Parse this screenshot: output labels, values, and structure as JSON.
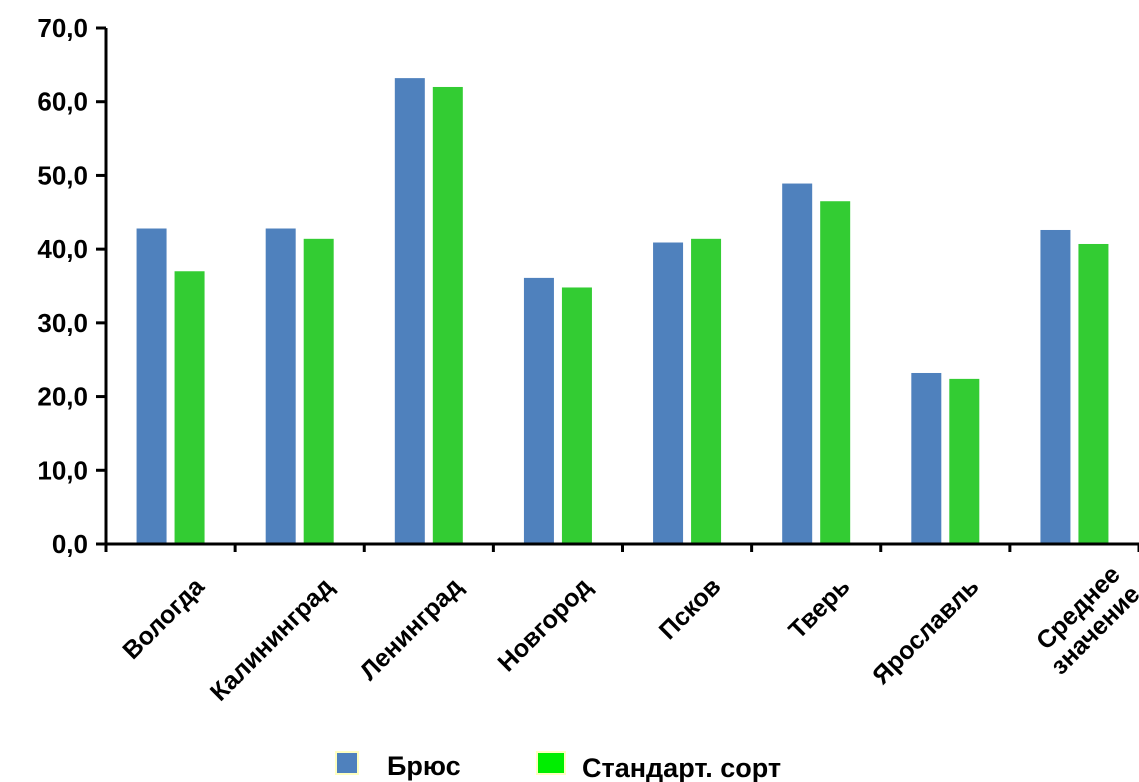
{
  "chart_data": {
    "type": "bar",
    "categories": [
      [
        "Вологда"
      ],
      [
        "Калининград"
      ],
      [
        "Ленинград"
      ],
      [
        "Новгород"
      ],
      [
        "Псков"
      ],
      [
        "Тверь"
      ],
      [
        "Ярославль"
      ],
      [
        "Среднее",
        "значение"
      ]
    ],
    "series": [
      {
        "name": "Брюс",
        "color": "#4f81bd",
        "values": [
          42.8,
          42.8,
          63.2,
          36.1,
          40.9,
          48.9,
          23.2,
          42.6
        ]
      },
      {
        "name": "Стандарт. сорт",
        "color": "#33cc33",
        "values": [
          37.0,
          41.4,
          62.0,
          34.8,
          41.4,
          46.5,
          22.4,
          40.7
        ]
      }
    ],
    "yticks": [
      "0,0",
      "10,0",
      "20,0",
      "30,0",
      "40,0",
      "50,0",
      "60,0",
      "70,0"
    ],
    "ylim": [
      0,
      70
    ],
    "grid": false,
    "legend_position": "bottom"
  }
}
